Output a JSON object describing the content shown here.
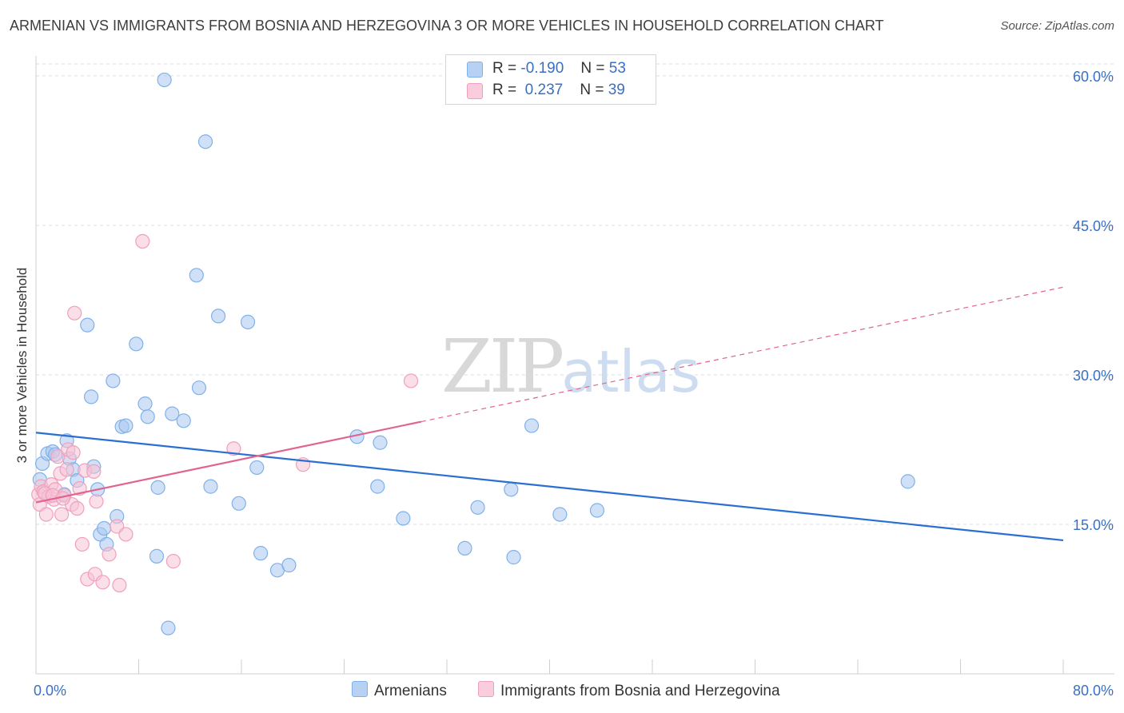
{
  "title": "ARMENIAN VS IMMIGRANTS FROM BOSNIA AND HERZEGOVINA 3 OR MORE VEHICLES IN HOUSEHOLD CORRELATION CHART",
  "source": "Source: ZipAtlas.com",
  "watermark": {
    "zip": "ZIP",
    "atlas": "atlas"
  },
  "legend": {
    "rows": [
      {
        "r_label": "R =",
        "r_value": "-0.190",
        "n_label": "N =",
        "n_value": "53"
      },
      {
        "r_label": "R =",
        "r_value": "0.237",
        "n_label": "N =",
        "n_value": "39"
      }
    ]
  },
  "colors": {
    "armenians": "#7fb1ea",
    "armenians_fill": "#a9c9f0",
    "armenians_line": "#2a6fd1",
    "bosnia": "#f0a0bd",
    "bosnia_fill": "#f6c3d5",
    "bosnia_line": "#e0648f",
    "tick_label": "#3a6fc4",
    "grid": "#dddddd"
  },
  "chart_data": {
    "type": "scatter",
    "title": "ARMENIAN VS IMMIGRANTS FROM BOSNIA AND HERZEGOVINA 3 OR MORE VEHICLES IN HOUSEHOLD CORRELATION CHART",
    "xlabel": "",
    "ylabel": "3 or more Vehicles in Household",
    "xlim": [
      0,
      80
    ],
    "ylim": [
      0,
      62
    ],
    "x_tick_labels": [
      "0.0%",
      "80.0%"
    ],
    "y_ticks": [
      15,
      30,
      45,
      60
    ],
    "y_tick_labels": [
      "15.0%",
      "30.0%",
      "45.0%",
      "60.0%"
    ],
    "grid": true,
    "legend_position": "top-center",
    "series": [
      {
        "name": "Armenians",
        "r": -0.19,
        "n": 53,
        "trend": {
          "x0": 0,
          "y0": 24.2,
          "x1": 80,
          "y1": 13.4
        },
        "points": [
          [
            0.3,
            19.5
          ],
          [
            0.5,
            21.1
          ],
          [
            0.9,
            22.1
          ],
          [
            1.3,
            22.3
          ],
          [
            1.5,
            22.0
          ],
          [
            2.2,
            18.0
          ],
          [
            2.4,
            23.4
          ],
          [
            2.6,
            21.6
          ],
          [
            2.9,
            20.5
          ],
          [
            3.2,
            19.4
          ],
          [
            4.0,
            35.0
          ],
          [
            4.3,
            27.8
          ],
          [
            4.5,
            20.8
          ],
          [
            4.8,
            18.5
          ],
          [
            5.0,
            14.0
          ],
          [
            5.3,
            14.6
          ],
          [
            5.5,
            13.0
          ],
          [
            6.0,
            29.4
          ],
          [
            6.3,
            15.8
          ],
          [
            6.7,
            24.8
          ],
          [
            7.0,
            24.9
          ],
          [
            7.8,
            33.1
          ],
          [
            8.5,
            27.1
          ],
          [
            8.7,
            25.8
          ],
          [
            9.5,
            18.7
          ],
          [
            9.4,
            11.8
          ],
          [
            10.0,
            59.6
          ],
          [
            10.3,
            4.6
          ],
          [
            10.6,
            26.1
          ],
          [
            11.5,
            25.4
          ],
          [
            12.5,
            40.0
          ],
          [
            12.7,
            28.7
          ],
          [
            13.2,
            53.4
          ],
          [
            13.6,
            18.8
          ],
          [
            14.2,
            35.9
          ],
          [
            15.8,
            17.1
          ],
          [
            16.5,
            35.3
          ],
          [
            17.2,
            20.7
          ],
          [
            17.5,
            12.1
          ],
          [
            18.8,
            10.4
          ],
          [
            19.7,
            10.9
          ],
          [
            25.0,
            23.8
          ],
          [
            26.6,
            18.8
          ],
          [
            26.8,
            23.2
          ],
          [
            28.6,
            15.6
          ],
          [
            33.4,
            12.6
          ],
          [
            34.4,
            16.7
          ],
          [
            37.0,
            18.5
          ],
          [
            37.2,
            11.7
          ],
          [
            38.6,
            24.9
          ],
          [
            40.8,
            16.0
          ],
          [
            43.7,
            16.4
          ],
          [
            67.9,
            19.3
          ]
        ]
      },
      {
        "name": "Immigrants from Bosnia and Herzegovina",
        "r": 0.237,
        "n": 39,
        "trend": {
          "x0": 0,
          "y0": 17.2,
          "x1": 30,
          "y1": 25.3,
          "dash_x1": 80,
          "dash_y1": 38.8
        },
        "points": [
          [
            0.2,
            18.0
          ],
          [
            0.3,
            17.0
          ],
          [
            0.4,
            18.8
          ],
          [
            0.6,
            18.3
          ],
          [
            0.8,
            16.0
          ],
          [
            1.0,
            17.8
          ],
          [
            1.2,
            19.0
          ],
          [
            1.4,
            17.5
          ],
          [
            1.5,
            18.5
          ],
          [
            1.7,
            21.8
          ],
          [
            1.9,
            20.1
          ],
          [
            2.0,
            16.0
          ],
          [
            2.2,
            17.9
          ],
          [
            2.4,
            20.5
          ],
          [
            2.5,
            22.5
          ],
          [
            2.8,
            17.0
          ],
          [
            3.0,
            36.2
          ],
          [
            3.2,
            16.6
          ],
          [
            3.4,
            18.6
          ],
          [
            3.6,
            13.0
          ],
          [
            3.8,
            20.4
          ],
          [
            4.0,
            9.5
          ],
          [
            4.5,
            20.3
          ],
          [
            4.6,
            10.0
          ],
          [
            4.7,
            17.3
          ],
          [
            5.2,
            9.2
          ],
          [
            5.7,
            12.0
          ],
          [
            6.3,
            14.8
          ],
          [
            6.5,
            8.9
          ],
          [
            7.0,
            14.0
          ],
          [
            8.3,
            43.4
          ],
          [
            10.7,
            11.3
          ],
          [
            15.4,
            22.6
          ],
          [
            20.8,
            21.0
          ],
          [
            29.2,
            29.4
          ],
          [
            2.9,
            22.2
          ],
          [
            0.7,
            18.1
          ],
          [
            1.3,
            17.9
          ],
          [
            2.1,
            17.6
          ]
        ]
      }
    ]
  },
  "bottom_legend": {
    "items": [
      "Armenians",
      "Immigrants from Bosnia and Herzegovina"
    ]
  }
}
